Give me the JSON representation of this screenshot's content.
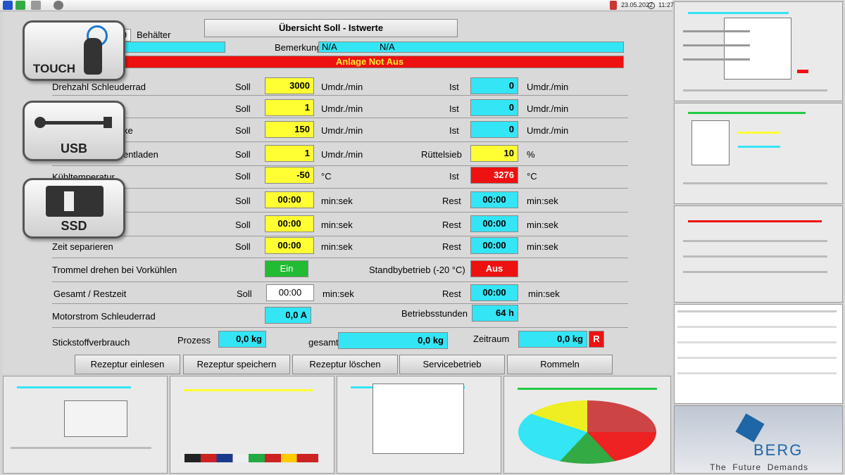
{
  "topbar": {
    "date": "23.05.2022",
    "time": "11:27",
    "icons": [
      "v-logo-icon",
      "tools-icon",
      "printer-icon",
      "user-icon",
      "calendar-icon",
      "clock-icon"
    ]
  },
  "header": {
    "title": "Übersicht Soll - Istwerte",
    "container_value": "0",
    "container_label": "Behälter",
    "field_left": "/A",
    "remark_label": "Bemerkung",
    "remark_value1": "N/A",
    "remark_value2": "N/A",
    "alarm": "Anlage Not Aus"
  },
  "rows": {
    "r1": {
      "label": "Drehzahl Schleuderrad",
      "soll_label": "Soll",
      "soll": "3000",
      "unit1": "Umdr./min",
      "ist_label": "Ist",
      "ist": "0",
      "unit2": "Umdr./min"
    },
    "r2": {
      "soll_label": "Soll",
      "soll": "1",
      "unit1": "Umdr./min",
      "ist_label": "Ist",
      "ist": "0",
      "unit2": "Umdr./min"
    },
    "r3": {
      "label_tail": "necke",
      "soll_label": "Soll",
      "soll": "150",
      "unit1": "Umdr./min",
      "ist_label": "Ist",
      "ist": "0",
      "unit2": "Umdr./min"
    },
    "r4": {
      "label_tail": "bei entladen",
      "soll_label": "Soll",
      "soll": "1",
      "unit1": "Umdr./min",
      "ist_label": "Rüttelsieb",
      "ist": "10",
      "unit2": "%"
    },
    "r5": {
      "label": "Kühltemperatur",
      "soll_label": "Soll",
      "soll": "-50",
      "unit1": "°C",
      "ist_label": "Ist",
      "ist": "3276",
      "unit2": "°C"
    },
    "r6": {
      "soll_label": "Soll",
      "soll": "00:00",
      "unit1": "min:sek",
      "ist_label": "Rest",
      "ist": "00:00",
      "unit2": "min:sek"
    },
    "r7": {
      "soll_label": "Soll",
      "soll": "00:00",
      "unit1": "min:sek",
      "ist_label": "Rest",
      "ist": "00:00",
      "unit2": "min:sek"
    },
    "r8": {
      "label": "Zeit separieren",
      "soll_label": "Soll",
      "soll": "00:00",
      "unit1": "min:sek",
      "ist_label": "Rest",
      "ist": "00:00",
      "unit2": "min:sek"
    }
  },
  "drum": {
    "label": "Trommel drehen bei Vorkühlen",
    "value": "Ein",
    "standby_label": "Standbybetrieb (-20 °C)",
    "standby_value": "Aus"
  },
  "total": {
    "label": "Gesamt / Restzeit",
    "soll_label": "Soll",
    "soll": "00:00",
    "unit1": "min:sek",
    "rest_label": "Rest",
    "rest": "00:00",
    "unit2": "min:sek"
  },
  "motor": {
    "label": "Motorstrom Schleuderrad",
    "value": "0,0 A",
    "hours_label": "Betriebsstunden",
    "hours": "64 h"
  },
  "nitrogen": {
    "label": "Stickstoffverbrauch",
    "process_label": "Prozess",
    "process": "0,0 kg",
    "total_label": "gesamt",
    "total": "0,0 kg",
    "period_label": "Zeitraum",
    "period": "0,0 kg",
    "reset": "R"
  },
  "buttons": [
    "Rezeptur einlesen",
    "Rezeptur speichern",
    "Rezeptur löschen",
    "Servicebetrieb",
    "Rommeln"
  ],
  "badges": {
    "touch": "TOUCH",
    "usb": "USB",
    "ssd": "SSD"
  },
  "brand": {
    "name": "BERG",
    "tagline": "The  Future  Demands"
  },
  "colors": {
    "yellow": "#ffff33",
    "cyan": "#33e5f5",
    "red": "#ee1111",
    "green": "#22bb33"
  }
}
